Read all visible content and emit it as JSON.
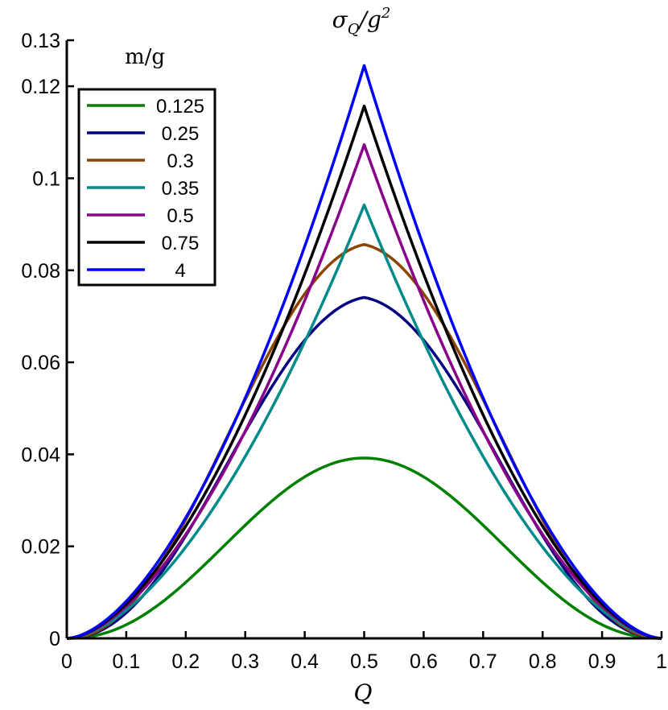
{
  "chart_data": {
    "type": "line",
    "title": "σ_Q/g²",
    "title_main": "σ",
    "title_sub": "Q",
    "title_rest": "/g",
    "title_sup": "2",
    "xlabel": "Q",
    "ylabel": "",
    "xlim": [
      0,
      1
    ],
    "ylim": [
      0,
      0.13
    ],
    "xticks": [
      "0",
      "0.1",
      "0.2",
      "0.3",
      "0.4",
      "0.5",
      "0.6",
      "0.7",
      "0.8",
      "0.9",
      "1"
    ],
    "yticks": [
      "0",
      "0.02",
      "0.04",
      "0.06",
      "0.08",
      "0.1",
      "0.12",
      "0.13"
    ],
    "legend_title": "m/g",
    "legend_position": "top-left",
    "series": [
      {
        "name": "0.125",
        "color": "#008000",
        "peak": 0.0392,
        "shape": "smooth"
      },
      {
        "name": "0.25",
        "color": "#000080",
        "peak": 0.0741,
        "shape": "rounded"
      },
      {
        "name": "0.3",
        "color": "#8B4500",
        "peak": 0.0856,
        "shape": "rounded"
      },
      {
        "name": "0.35",
        "color": "#008B8B",
        "peak": 0.0942,
        "shape": "cusp"
      },
      {
        "name": "0.5",
        "color": "#8B008B",
        "peak": 0.1073,
        "shape": "cusp"
      },
      {
        "name": "0.75",
        "color": "#000000",
        "peak": 0.1157,
        "shape": "cusp"
      },
      {
        "name": "4",
        "color": "#0000FF",
        "peak": 0.1245,
        "shape": "cusp"
      }
    ]
  }
}
